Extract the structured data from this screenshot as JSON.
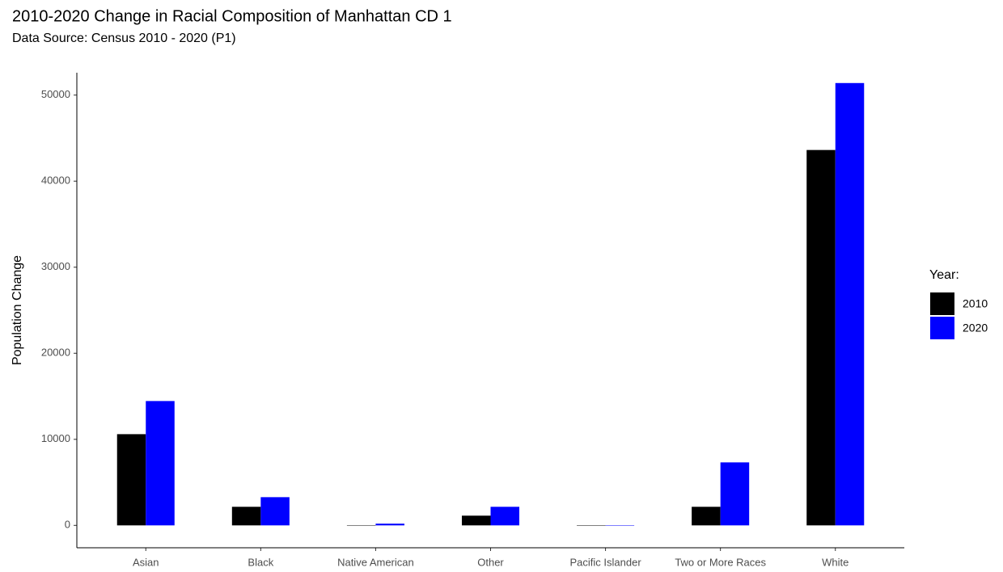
{
  "chart_data": {
    "type": "bar",
    "title": "2010-2020 Change in Racial Composition of Manhattan CD 1",
    "subtitle": "Data Source: Census 2010 - 2020 (P1)",
    "y_label": "Population Change",
    "legend_title": "Year:",
    "categories": [
      "Asian",
      "Black",
      "Native American",
      "Other",
      "Pacific Islander",
      "Two or More Races",
      "White"
    ],
    "series": [
      {
        "name": "2010",
        "color": "#000000",
        "values": [
          10600,
          2160,
          30,
          1130,
          10,
          2160,
          43620
        ]
      },
      {
        "name": "2020",
        "color": "#0000ff",
        "values": [
          14450,
          3280,
          200,
          2160,
          20,
          7320,
          51400
        ]
      }
    ],
    "ylim": [
      -2600,
      52600
    ],
    "yticks": [
      0,
      10000,
      20000,
      30000,
      40000,
      50000
    ],
    "grid": false,
    "legend_position": "right"
  }
}
